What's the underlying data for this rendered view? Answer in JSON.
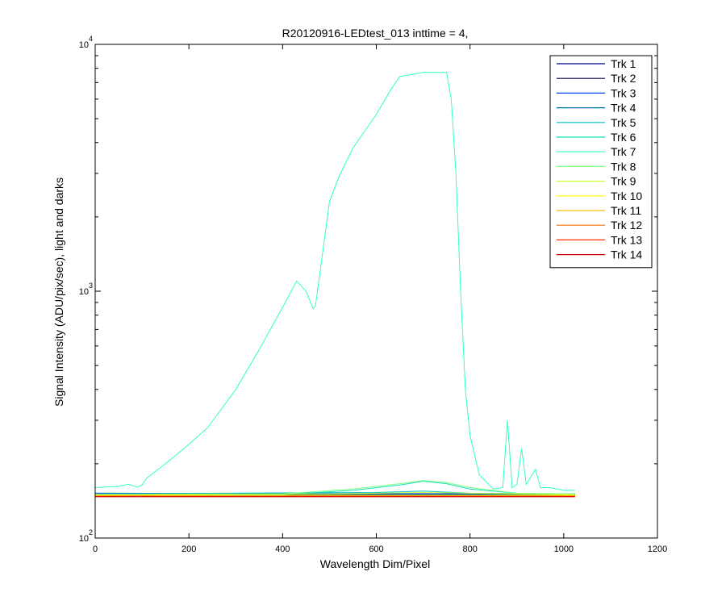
{
  "chart_data": {
    "type": "line",
    "title": "R20120916-LEDtest_013 inttime = 4,",
    "xlabel": "Wavelength Dim/Pixel",
    "ylabel": "Signal Intensity (ADU/pix/sec), light and darks",
    "xlim": [
      0,
      1200
    ],
    "ylim": [
      100,
      10000
    ],
    "yscale": "log",
    "x_ticks": [
      "0",
      "200",
      "400",
      "600",
      "800",
      "1000",
      "1200"
    ],
    "y_ticks": [
      {
        "base": "10",
        "exp": "2"
      },
      {
        "base": "10",
        "exp": "3"
      },
      {
        "base": "10",
        "exp": "4"
      }
    ],
    "grid": false,
    "legend_position": "top-right",
    "series": [
      {
        "name": "Trk 1",
        "color": "#00008f",
        "points": [
          [
            0,
            150
          ],
          [
            1024,
            150
          ]
        ]
      },
      {
        "name": "Trk 2",
        "color": "#00004f",
        "points": [
          [
            0,
            149
          ],
          [
            1024,
            149
          ]
        ]
      },
      {
        "name": "Trk 3",
        "color": "#0040ff",
        "points": [
          [
            0,
            152
          ],
          [
            1024,
            151
          ]
        ]
      },
      {
        "name": "Trk 4",
        "color": "#006f9f",
        "points": [
          [
            0,
            151
          ],
          [
            1024,
            150
          ]
        ]
      },
      {
        "name": "Trk 5",
        "color": "#00bfbf",
        "points": [
          [
            0,
            151
          ],
          [
            600,
            153
          ],
          [
            700,
            155
          ],
          [
            800,
            152
          ],
          [
            1024,
            151
          ]
        ]
      },
      {
        "name": "Trk 6",
        "color": "#10e0c0",
        "points": [
          [
            0,
            150
          ],
          [
            400,
            150
          ],
          [
            550,
            156
          ],
          [
            650,
            164
          ],
          [
            700,
            170
          ],
          [
            750,
            166
          ],
          [
            800,
            158
          ],
          [
            900,
            152
          ],
          [
            1024,
            151
          ]
        ]
      },
      {
        "name": "Trk 7",
        "color": "#30ffc8",
        "points": [
          [
            0,
            160
          ],
          [
            50,
            162
          ],
          [
            70,
            165
          ],
          [
            90,
            161
          ],
          [
            100,
            164
          ],
          [
            110,
            175
          ],
          [
            150,
            200
          ],
          [
            200,
            240
          ],
          [
            240,
            280
          ],
          [
            300,
            400
          ],
          [
            350,
            580
          ],
          [
            400,
            860
          ],
          [
            430,
            1100
          ],
          [
            450,
            1000
          ],
          [
            465,
            850
          ],
          [
            470,
            870
          ],
          [
            480,
            1200
          ],
          [
            500,
            2300
          ],
          [
            520,
            2900
          ],
          [
            550,
            3800
          ],
          [
            600,
            5200
          ],
          [
            630,
            6500
          ],
          [
            650,
            7400
          ],
          [
            700,
            7700
          ],
          [
            750,
            7700
          ],
          [
            760,
            6000
          ],
          [
            770,
            3000
          ],
          [
            780,
            1000
          ],
          [
            790,
            400
          ],
          [
            800,
            260
          ],
          [
            820,
            180
          ],
          [
            850,
            158
          ],
          [
            870,
            160
          ],
          [
            880,
            300
          ],
          [
            890,
            160
          ],
          [
            900,
            165
          ],
          [
            910,
            230
          ],
          [
            920,
            165
          ],
          [
            940,
            190
          ],
          [
            950,
            160
          ],
          [
            970,
            160
          ],
          [
            1000,
            156
          ],
          [
            1024,
            156
          ]
        ]
      },
      {
        "name": "Trk 8",
        "color": "#80ff80",
        "points": [
          [
            0,
            150
          ],
          [
            400,
            151
          ],
          [
            550,
            158
          ],
          [
            650,
            166
          ],
          [
            700,
            171
          ],
          [
            750,
            168
          ],
          [
            800,
            160
          ],
          [
            900,
            152
          ],
          [
            1024,
            151
          ]
        ]
      },
      {
        "name": "Trk 9",
        "color": "#d0ff30",
        "points": [
          [
            0,
            150
          ],
          [
            500,
            151
          ],
          [
            700,
            153
          ],
          [
            900,
            151
          ],
          [
            1024,
            150
          ]
        ]
      },
      {
        "name": "Trk 10",
        "color": "#ffff00",
        "points": [
          [
            0,
            149
          ],
          [
            1024,
            149
          ]
        ]
      },
      {
        "name": "Trk 11",
        "color": "#ffbf00",
        "points": [
          [
            0,
            148
          ],
          [
            1024,
            148
          ]
        ]
      },
      {
        "name": "Trk 12",
        "color": "#ff7000",
        "points": [
          [
            0,
            148
          ],
          [
            1024,
            148
          ]
        ]
      },
      {
        "name": "Trk 13",
        "color": "#ff3000",
        "points": [
          [
            0,
            147
          ],
          [
            1024,
            147
          ]
        ]
      },
      {
        "name": "Trk 14",
        "color": "#d00000",
        "points": [
          [
            0,
            147
          ],
          [
            1024,
            147
          ]
        ]
      }
    ]
  }
}
